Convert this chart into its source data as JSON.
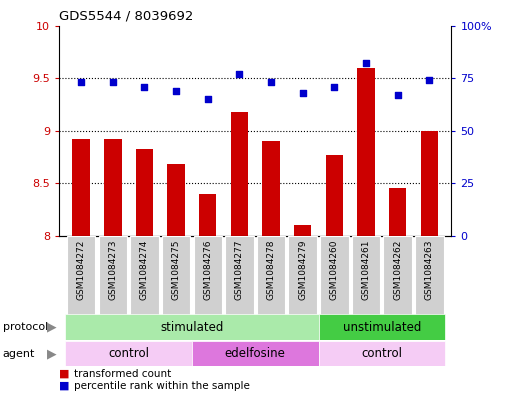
{
  "title": "GDS5544 / 8039692",
  "samples": [
    "GSM1084272",
    "GSM1084273",
    "GSM1084274",
    "GSM1084275",
    "GSM1084276",
    "GSM1084277",
    "GSM1084278",
    "GSM1084279",
    "GSM1084260",
    "GSM1084261",
    "GSM1084262",
    "GSM1084263"
  ],
  "transformed_count": [
    8.92,
    8.92,
    8.83,
    8.68,
    8.4,
    9.18,
    8.9,
    8.1,
    8.77,
    9.6,
    8.45,
    9.0
  ],
  "percentile_rank": [
    73,
    73,
    71,
    69,
    65,
    77,
    73,
    68,
    71,
    82,
    67,
    74
  ],
  "ylim_left": [
    8.0,
    10.0
  ],
  "ylim_right": [
    0,
    100
  ],
  "yticks_left": [
    8.0,
    8.5,
    9.0,
    9.5,
    10.0
  ],
  "yticks_right": [
    0,
    25,
    50,
    75,
    100
  ],
  "ytick_labels_left": [
    "8",
    "8.5",
    "9",
    "9.5",
    "10"
  ],
  "ytick_labels_right": [
    "0",
    "25",
    "50",
    "75",
    "100%"
  ],
  "bar_color": "#cc0000",
  "dot_color": "#0000cc",
  "protocol_color_stim": "#aaeaaa",
  "protocol_color_unstim": "#44cc44",
  "agent_color_ctrl": "#f5ccf5",
  "agent_color_edel": "#dd77dd",
  "legend_bar_label": "transformed count",
  "legend_dot_label": "percentile rank within the sample",
  "bg_color": "#ffffff"
}
